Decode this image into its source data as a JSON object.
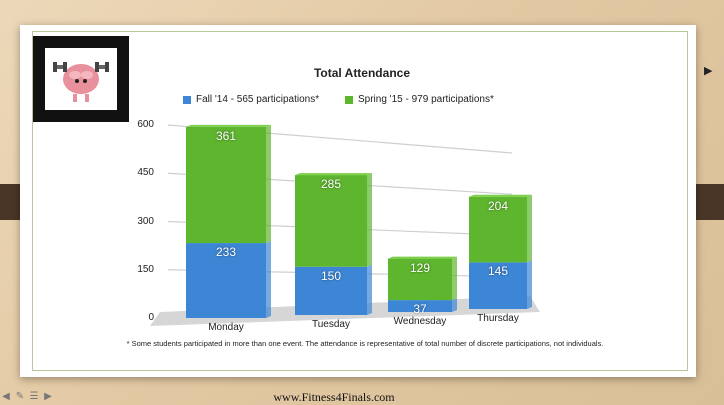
{
  "chart_data": {
    "type": "bar",
    "stacked": true,
    "title": "Total Attendance",
    "categories": [
      "Monday",
      "Tuesday",
      "Wednesday",
      "Thursday"
    ],
    "series": [
      {
        "name": "Fall '14 - 565 participations*",
        "color": "#3d86d6",
        "values": [
          233,
          150,
          37,
          145
        ]
      },
      {
        "name": "Spring '15 - 979 participations*",
        "color": "#5eb52e",
        "values": [
          361,
          285,
          129,
          204
        ]
      }
    ],
    "ylim": [
      0,
      600
    ],
    "yticks": [
      "0",
      "150",
      "300",
      "450",
      "600"
    ],
    "grid": true,
    "legend_position": "top",
    "footnote": "* Some students participated in more than one event. The attendance is representative of total number of discrete participations, not individuals."
  },
  "website": "www.Fitness4Finals.com",
  "icons": [
    "arrow-left-icon",
    "pencil-icon",
    "menu-icon",
    "arrow-right-icon"
  ]
}
